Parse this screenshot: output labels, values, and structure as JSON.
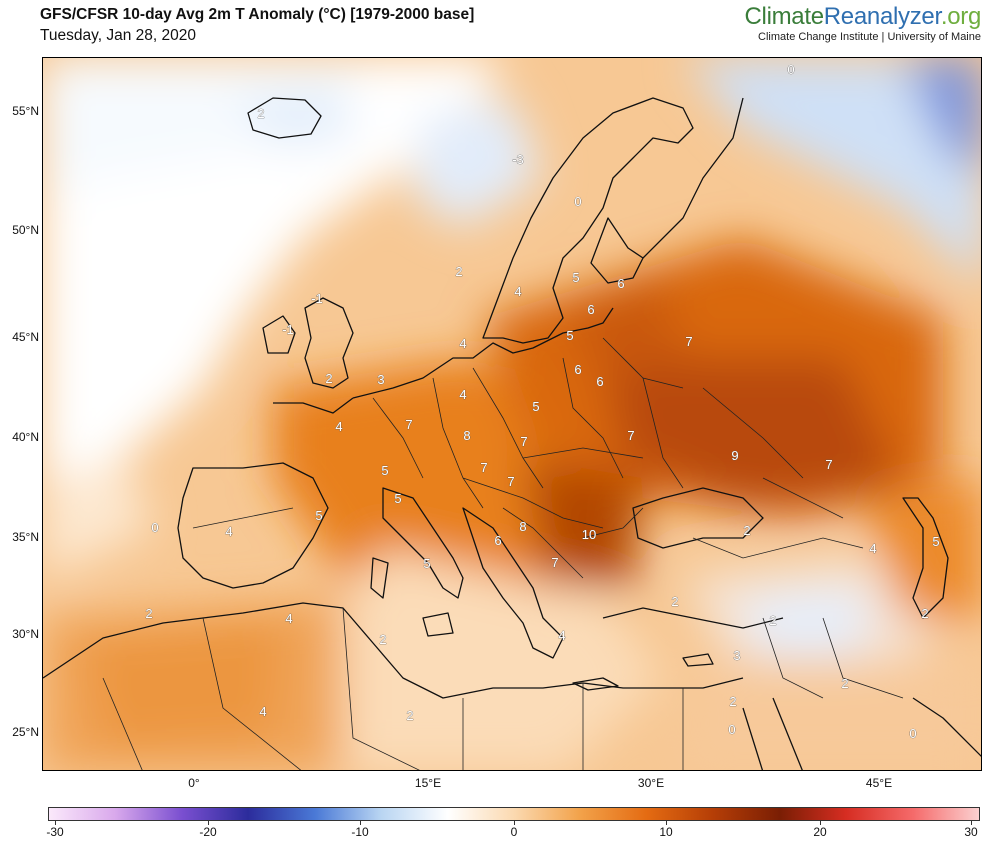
{
  "header": {
    "title": "GFS/CFSR 10-day Avg 2m T Anomaly (°C) [1979-2000 base]",
    "date": "Tuesday, Jan 28, 2020",
    "brand_part1": "Climate",
    "brand_part2": "Reanalyzer",
    "brand_part3": ".org",
    "institution": "Climate Change Institute | University of Maine"
  },
  "axes": {
    "lat_labels": [
      "55°N",
      "50°N",
      "45°N",
      "40°N",
      "35°N",
      "30°N",
      "25°N"
    ],
    "lon_labels": [
      "0°",
      "15°E",
      "30°E",
      "45°E"
    ]
  },
  "colorbar": {
    "ticks": [
      "-30",
      "-20",
      "-10",
      "0",
      "10",
      "20",
      "30"
    ],
    "colors": [
      "#fbe9fb",
      "#d9a9ec",
      "#7a4fd0",
      "#2c2c9c",
      "#4a79d6",
      "#b9d5f2",
      "#ffffff",
      "#fbd9b0",
      "#f2a24a",
      "#e46b12",
      "#b53e06",
      "#7a1e04",
      "#d62d22",
      "#f56a6a",
      "#fbd0d0"
    ]
  },
  "map_labels": [
    "2",
    "-3",
    "0",
    "-1",
    "2",
    "0",
    "-1",
    "2",
    "3",
    "4",
    "0",
    "4",
    "5",
    "5",
    "4",
    "7",
    "5",
    "5",
    "8",
    "7",
    "7",
    "5",
    "7",
    "6",
    "8",
    "5",
    "7",
    "6",
    "10",
    "2",
    "2",
    "4",
    "6",
    "6",
    "5",
    "6",
    "4",
    "7",
    "7",
    "9",
    "7",
    "2",
    "4",
    "5",
    "4",
    "2",
    "2",
    "3",
    "2",
    "0",
    "0",
    "2",
    "4",
    "2",
    "0"
  ]
}
